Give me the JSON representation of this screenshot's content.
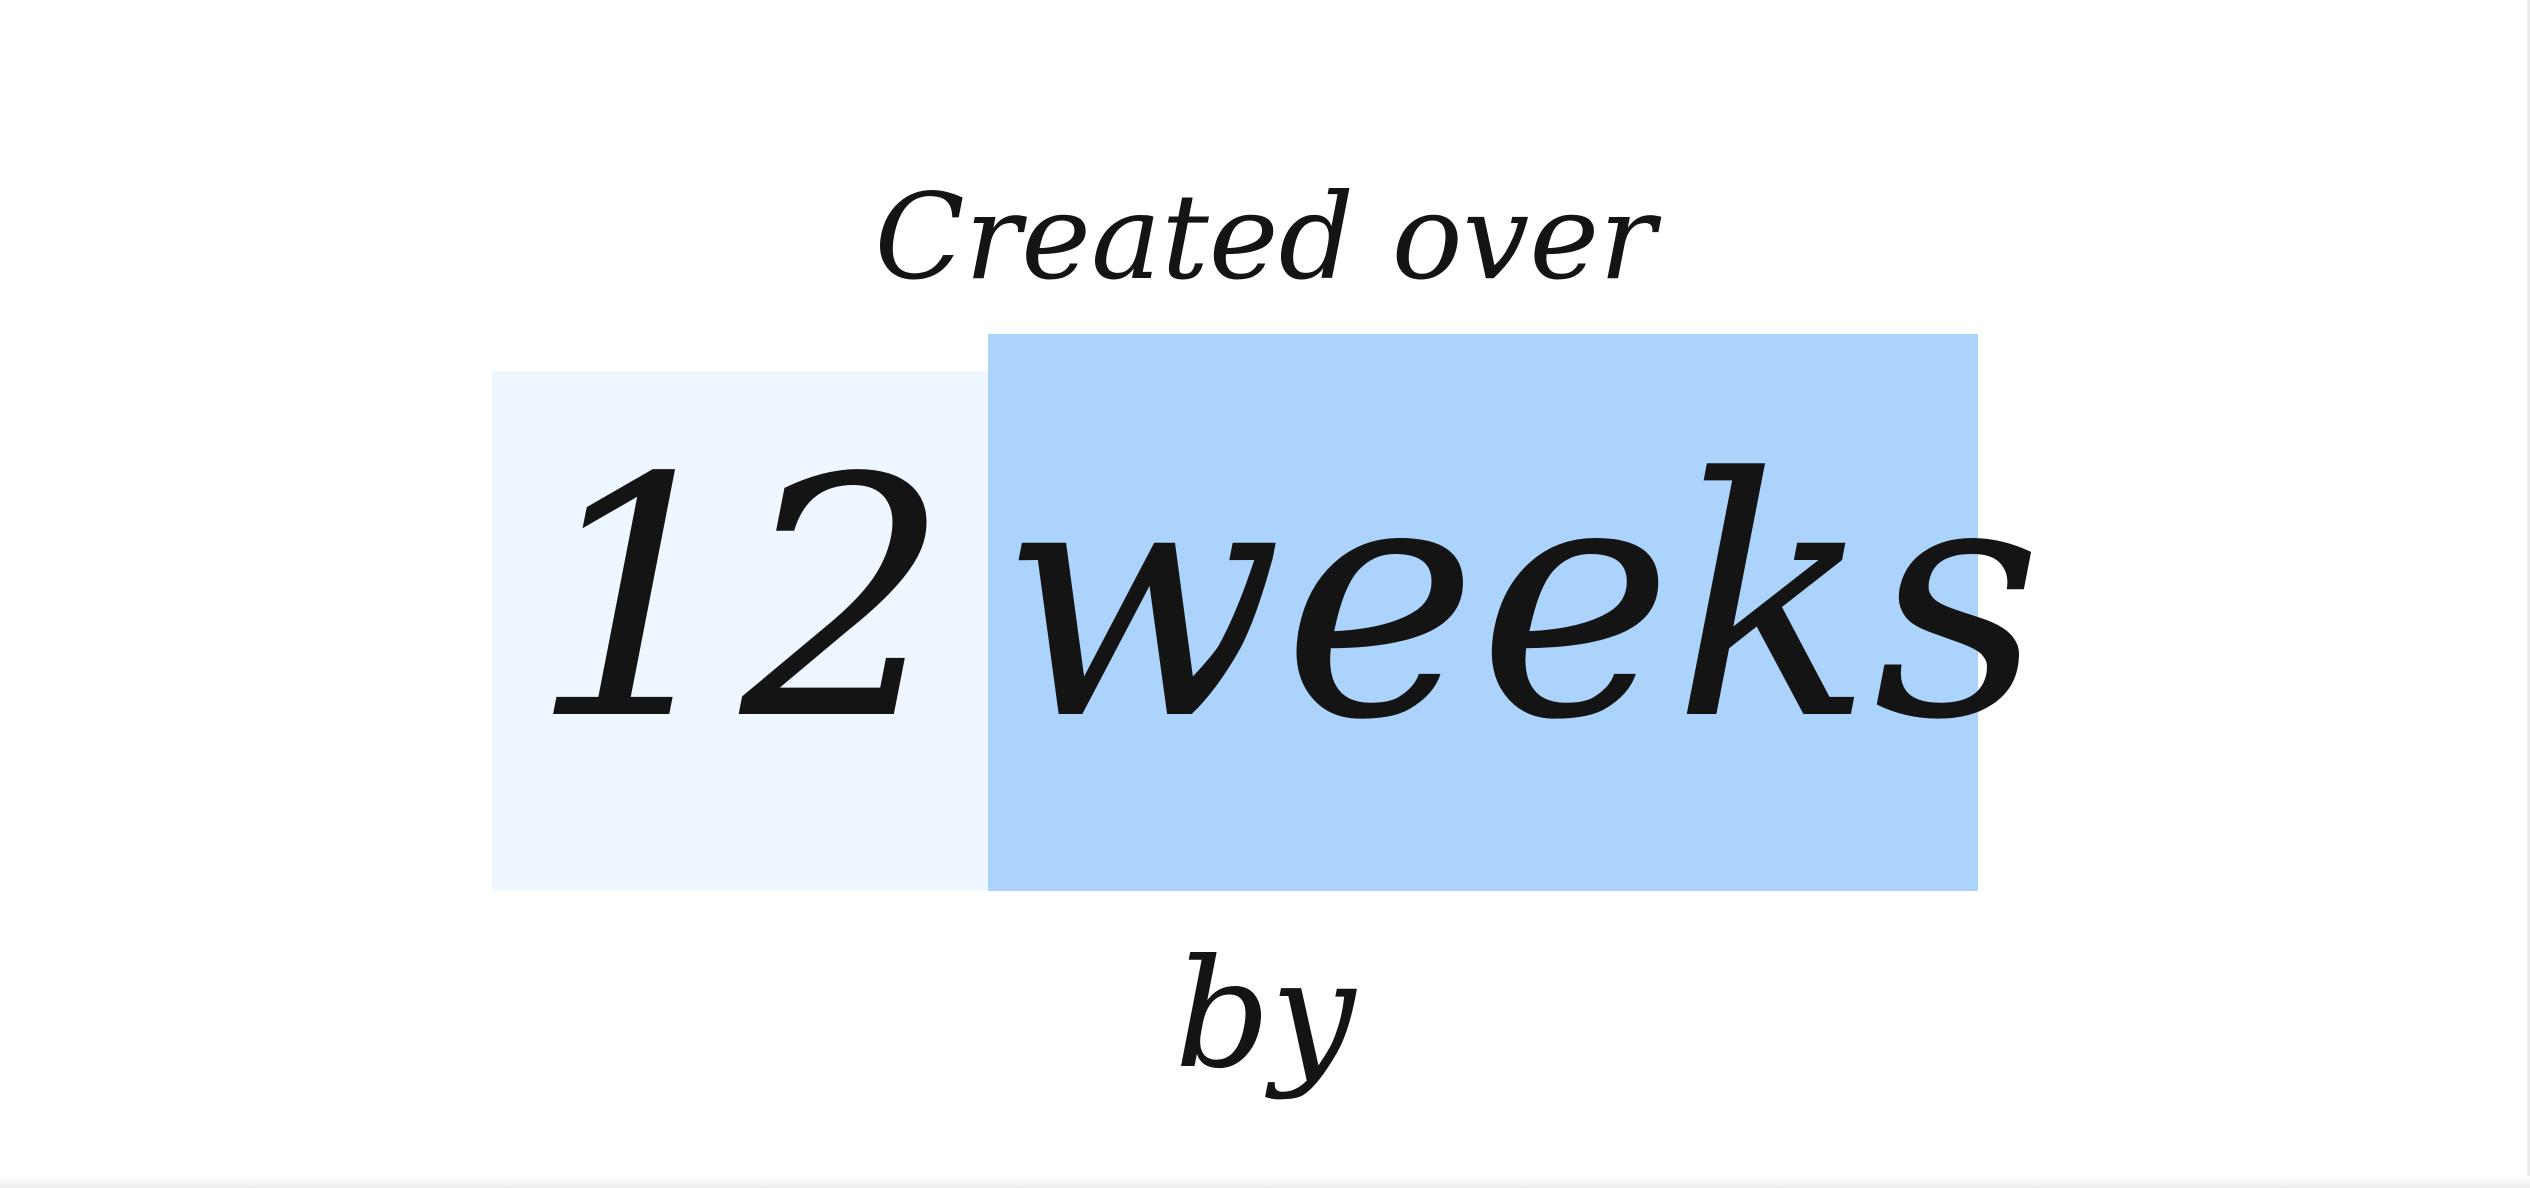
{
  "heading": "Created over",
  "duration": {
    "number": "12",
    "unit": "weeks"
  },
  "footer": "by",
  "colors": {
    "selection_light": "#eef6ff",
    "selection_strong": "#abd3fb",
    "text": "#141414"
  }
}
